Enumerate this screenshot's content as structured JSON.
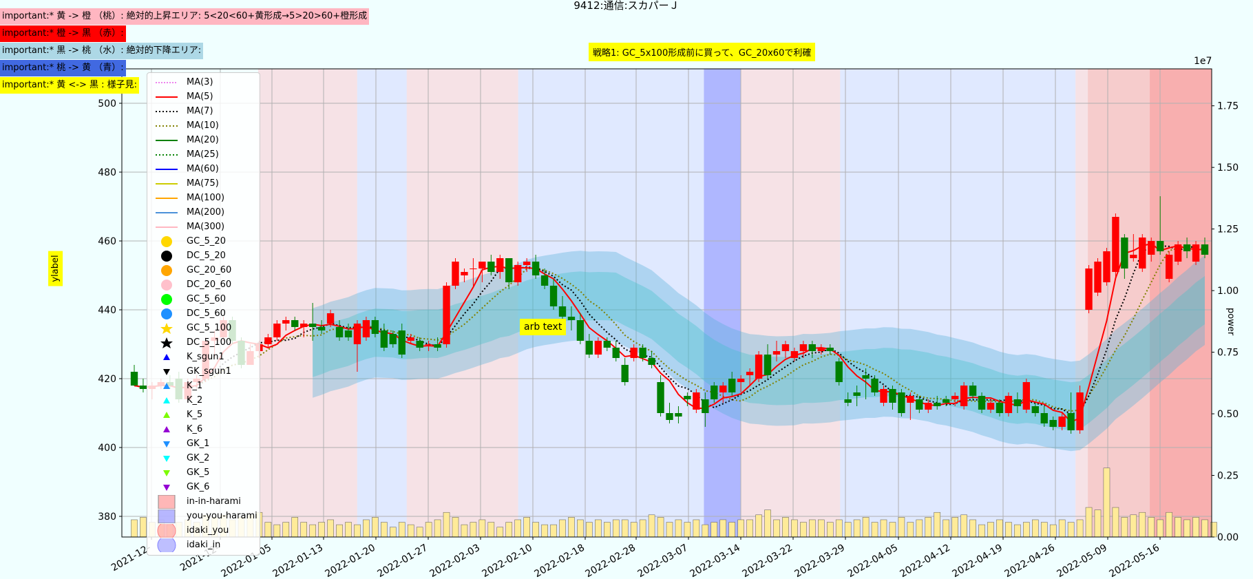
{
  "title": "9412:通信:スカパーＪ",
  "notes": [
    {
      "text": "important:* 黄 -> 橙 （桃）: 絶対的上昇エリア: 5<20<60+黄形成→5>20>60+橙形成",
      "bg": "#ffb6c1"
    },
    {
      "text": "important:* 橙 -> 黒 （赤）:",
      "bg": "#ff0000"
    },
    {
      "text": "important:* 黒 -> 桃 （水）: 絶対的下降エリア:",
      "bg": "#add8e6"
    },
    {
      "text": "important:* 桃 -> 黄 （青）:",
      "bg": "#4169e1"
    },
    {
      "text": "important:* 黄 <-> 黒 : 様子見:",
      "bg": "#ffff00"
    }
  ],
  "strategy_text": "戦略1: GC_5x100形成前に買って、GC_20x60で利確",
  "annotation_text": "arb text",
  "ylabel": "ylabel",
  "y2label": "power",
  "y2_scale_label": "1e7",
  "colors": {
    "up": "#ff0000",
    "down": "#008000",
    "volume": "#ffeb99"
  },
  "legend": [
    {
      "label": "MA(3)",
      "kind": "line",
      "color": "#ee82ee",
      "dash": "2,2"
    },
    {
      "label": "MA(5)",
      "kind": "line",
      "color": "#ff0000",
      "dash": ""
    },
    {
      "label": "MA(7)",
      "kind": "line",
      "color": "#000000",
      "dash": "2,3"
    },
    {
      "label": "MA(10)",
      "kind": "line",
      "color": "#808000",
      "dash": "2,3"
    },
    {
      "label": "MA(20)",
      "kind": "line",
      "color": "#008000",
      "dash": ""
    },
    {
      "label": "MA(25)",
      "kind": "line",
      "color": "#008000",
      "dash": "2,3"
    },
    {
      "label": "MA(60)",
      "kind": "line",
      "color": "#0000ff",
      "dash": ""
    },
    {
      "label": "MA(75)",
      "kind": "line",
      "color": "#cccc00",
      "dash": ""
    },
    {
      "label": "MA(100)",
      "kind": "line",
      "color": "#ffa500",
      "dash": ""
    },
    {
      "label": "MA(200)",
      "kind": "line",
      "color": "#4a90d9",
      "dash": ""
    },
    {
      "label": "MA(300)",
      "kind": "line",
      "color": "#ffb6c1",
      "dash": ""
    },
    {
      "label": "GC_5_20",
      "kind": "circle",
      "color": "#ffd700"
    },
    {
      "label": "DC_5_20",
      "kind": "circle",
      "color": "#000000"
    },
    {
      "label": "GC_20_60",
      "kind": "circle",
      "color": "#ffa500"
    },
    {
      "label": "DC_20_60",
      "kind": "circle",
      "color": "#ffc0cb"
    },
    {
      "label": "GC_5_60",
      "kind": "circle",
      "color": "#00ff00"
    },
    {
      "label": "DC_5_60",
      "kind": "circle",
      "color": "#1e90ff"
    },
    {
      "label": "GC_5_100",
      "kind": "star",
      "color": "#ffd700"
    },
    {
      "label": "DC_5_100",
      "kind": "star",
      "color": "#000000"
    },
    {
      "label": "K_sgun1",
      "kind": "tri-up",
      "color": "#0000ff"
    },
    {
      "label": "GK_sgun1",
      "kind": "tri-down",
      "color": "#000000"
    },
    {
      "label": "K_1",
      "kind": "tri-up",
      "color": "#1e90ff"
    },
    {
      "label": "K_2",
      "kind": "tri-up",
      "color": "#00ffff"
    },
    {
      "label": "K_5",
      "kind": "tri-up",
      "color": "#7cfc00"
    },
    {
      "label": "K_6",
      "kind": "tri-up",
      "color": "#9400d3"
    },
    {
      "label": "GK_1",
      "kind": "tri-down",
      "color": "#1e90ff"
    },
    {
      "label": "GK_2",
      "kind": "tri-down",
      "color": "#00ffff"
    },
    {
      "label": "GK_5",
      "kind": "tri-down",
      "color": "#7cfc00"
    },
    {
      "label": "GK_6",
      "kind": "tri-down",
      "color": "#9400d3"
    },
    {
      "label": "in-in-harami",
      "kind": "square",
      "color": "#ff9999"
    },
    {
      "label": "you-you-harami",
      "kind": "square",
      "color": "#9999ff"
    },
    {
      "label": "idaki_you",
      "kind": "bigcircle",
      "color": "#ff8080"
    },
    {
      "label": "idaki_in",
      "kind": "bigcircle",
      "color": "#8080ff"
    }
  ],
  "chart_data": {
    "type": "candlestick",
    "title": "9412:通信:スカパーＪ",
    "ylabel": "ylabel",
    "y2label": "power",
    "y2_multiplier": "1e7",
    "ylim": [
      374,
      510
    ],
    "y2lim": [
      0,
      1.9
    ],
    "yticks": [
      380,
      400,
      420,
      440,
      460,
      480,
      500
    ],
    "y2ticks": [
      "0.00",
      "0.25",
      "0.50",
      "0.75",
      "1.00",
      "1.25",
      "1.50",
      "1.75"
    ],
    "xticks": [
      "2021-12-",
      "2021-12-",
      "2022-01-05",
      "2022-01-13",
      "2022-01-20",
      "2022-01-27",
      "2022-02-03",
      "2022-02-10",
      "2022-02-18",
      "2022-02-28",
      "2022-03-07",
      "2022-03-14",
      "2022-03-22",
      "2022-03-29",
      "2022-04-05",
      "2022-04-12",
      "2022-04-19",
      "2022-04-26",
      "2022-05-09",
      "2022-05-16"
    ],
    "grid": true,
    "legend_position": "upper-left",
    "shaded_regions": [
      {
        "from": 22,
        "to": 38,
        "color": "#ffb6c1",
        "alpha": 0.4
      },
      {
        "from": 38,
        "to": 46,
        "color": "#c8c8ff",
        "alpha": 0.4
      },
      {
        "from": 46,
        "to": 64,
        "color": "#ffb6c1",
        "alpha": 0.4
      },
      {
        "from": 64,
        "to": 94,
        "color": "#c8c8ff",
        "alpha": 0.4
      },
      {
        "from": 94,
        "to": 100,
        "color": "#6060ff",
        "alpha": 0.45
      },
      {
        "from": 100,
        "to": 116,
        "color": "#ffb6c1",
        "alpha": 0.4
      },
      {
        "from": 116,
        "to": 154,
        "color": "#c8c8ff",
        "alpha": 0.4
      },
      {
        "from": 154,
        "to": 156,
        "color": "#ffb6c1",
        "alpha": 0.4
      },
      {
        "from": 156,
        "to": 166,
        "color": "#ff8080",
        "alpha": 0.4
      },
      {
        "from": 166,
        "to": 176,
        "color": "#ff6060",
        "alpha": 0.5
      }
    ],
    "candles": [
      {
        "o": 422,
        "h": 424,
        "l": 418,
        "c": 418
      },
      {
        "o": 418,
        "h": 420,
        "l": 416,
        "c": 417
      },
      {
        "o": 417,
        "h": 419,
        "l": 414,
        "c": 418
      },
      {
        "o": 418,
        "h": 420,
        "l": 417,
        "c": 419
      },
      {
        "o": 419,
        "h": 421,
        "l": 417,
        "c": 418
      },
      {
        "o": 420,
        "h": 422,
        "l": 413,
        "c": 414
      },
      {
        "o": 414,
        "h": 420,
        "l": 413,
        "c": 419
      },
      {
        "o": 419,
        "h": 421,
        "l": 417,
        "c": 420
      },
      {
        "o": 420,
        "h": 432,
        "l": 419,
        "c": 431
      },
      {
        "o": 431,
        "h": 434,
        "l": 426,
        "c": 432
      },
      {
        "o": 432,
        "h": 438,
        "l": 431,
        "c": 437
      },
      {
        "o": 437,
        "h": 438,
        "l": 430,
        "c": 431
      },
      {
        "o": 431,
        "h": 432,
        "l": 423,
        "c": 424
      },
      {
        "o": 424,
        "h": 430,
        "l": 424,
        "c": 428
      },
      {
        "o": 428,
        "h": 431,
        "l": 426,
        "c": 430
      },
      {
        "o": 430,
        "h": 433,
        "l": 429,
        "c": 432
      },
      {
        "o": 432,
        "h": 437,
        "l": 431,
        "c": 436
      },
      {
        "o": 436,
        "h": 438,
        "l": 434,
        "c": 437
      },
      {
        "o": 437,
        "h": 438,
        "l": 434,
        "c": 435
      },
      {
        "o": 435,
        "h": 437,
        "l": 432,
        "c": 436
      },
      {
        "o": 436,
        "h": 442,
        "l": 431,
        "c": 435
      },
      {
        "o": 435,
        "h": 437,
        "l": 433,
        "c": 434
      },
      {
        "o": 436,
        "h": 440,
        "l": 435,
        "c": 439
      },
      {
        "o": 435,
        "h": 437,
        "l": 431,
        "c": 432
      },
      {
        "o": 434,
        "h": 436,
        "l": 431,
        "c": 432
      },
      {
        "o": 430,
        "h": 437,
        "l": 422,
        "c": 436
      },
      {
        "o": 432,
        "h": 438,
        "l": 431,
        "c": 437
      },
      {
        "o": 437,
        "h": 438,
        "l": 432,
        "c": 433
      },
      {
        "o": 434,
        "h": 436,
        "l": 428,
        "c": 429
      },
      {
        "o": 433,
        "h": 434,
        "l": 429,
        "c": 430
      },
      {
        "o": 434,
        "h": 436,
        "l": 426,
        "c": 427
      },
      {
        "o": 431,
        "h": 433,
        "l": 430,
        "c": 432
      },
      {
        "o": 431,
        "h": 432,
        "l": 428,
        "c": 429
      },
      {
        "o": 430,
        "h": 431,
        "l": 428,
        "c": 430
      },
      {
        "o": 430,
        "h": 432,
        "l": 428,
        "c": 429
      },
      {
        "o": 430,
        "h": 448,
        "l": 429,
        "c": 447
      },
      {
        "o": 447,
        "h": 455,
        "l": 446,
        "c": 454
      },
      {
        "o": 450,
        "h": 452,
        "l": 448,
        "c": 451
      },
      {
        "o": 452,
        "h": 455,
        "l": 447,
        "c": 452
      },
      {
        "o": 452,
        "h": 454,
        "l": 448,
        "c": 454
      },
      {
        "o": 454,
        "h": 456,
        "l": 450,
        "c": 451
      },
      {
        "o": 451,
        "h": 456,
        "l": 449,
        "c": 455
      },
      {
        "o": 455,
        "h": 455,
        "l": 446,
        "c": 448
      },
      {
        "o": 448,
        "h": 454,
        "l": 447,
        "c": 453
      },
      {
        "o": 453,
        "h": 455,
        "l": 451,
        "c": 454
      },
      {
        "o": 454,
        "h": 456,
        "l": 449,
        "c": 450
      },
      {
        "o": 450,
        "h": 452,
        "l": 446,
        "c": 447
      },
      {
        "o": 447,
        "h": 449,
        "l": 440,
        "c": 441
      },
      {
        "o": 441,
        "h": 444,
        "l": 436,
        "c": 438
      },
      {
        "o": 438,
        "h": 441,
        "l": 434,
        "c": 437
      },
      {
        "o": 437,
        "h": 439,
        "l": 430,
        "c": 431
      },
      {
        "o": 431,
        "h": 433,
        "l": 426,
        "c": 427
      },
      {
        "o": 427,
        "h": 432,
        "l": 426,
        "c": 431
      },
      {
        "o": 431,
        "h": 432,
        "l": 428,
        "c": 429
      },
      {
        "o": 429,
        "h": 431,
        "l": 425,
        "c": 426
      },
      {
        "o": 424,
        "h": 426,
        "l": 418,
        "c": 419
      },
      {
        "o": 426,
        "h": 430,
        "l": 425,
        "c": 429
      },
      {
        "o": 429,
        "h": 430,
        "l": 425,
        "c": 426
      },
      {
        "o": 426,
        "h": 428,
        "l": 423,
        "c": 424
      },
      {
        "o": 419,
        "h": 421,
        "l": 409,
        "c": 410
      },
      {
        "o": 410,
        "h": 413,
        "l": 407,
        "c": 408
      },
      {
        "o": 410,
        "h": 412,
        "l": 407,
        "c": 409
      },
      {
        "o": 415,
        "h": 416,
        "l": 412,
        "c": 414
      },
      {
        "o": 411,
        "h": 417,
        "l": 410,
        "c": 416
      },
      {
        "o": 414,
        "h": 416,
        "l": 406,
        "c": 410
      },
      {
        "o": 418,
        "h": 419,
        "l": 413,
        "c": 414
      },
      {
        "o": 416,
        "h": 419,
        "l": 413,
        "c": 418
      },
      {
        "o": 420,
        "h": 422,
        "l": 415,
        "c": 416
      },
      {
        "o": 419,
        "h": 421,
        "l": 416,
        "c": 420
      },
      {
        "o": 421,
        "h": 423,
        "l": 418,
        "c": 422
      },
      {
        "o": 420,
        "h": 428,
        "l": 419,
        "c": 427
      },
      {
        "o": 427,
        "h": 430,
        "l": 420,
        "c": 421
      },
      {
        "o": 427,
        "h": 431,
        "l": 425,
        "c": 428
      },
      {
        "o": 428,
        "h": 431,
        "l": 426,
        "c": 430
      },
      {
        "o": 426,
        "h": 429,
        "l": 425,
        "c": 428
      },
      {
        "o": 428,
        "h": 431,
        "l": 426,
        "c": 430
      },
      {
        "o": 430,
        "h": 431,
        "l": 426,
        "c": 428
      },
      {
        "o": 428,
        "h": 430,
        "l": 427,
        "c": 429
      },
      {
        "o": 429,
        "h": 430,
        "l": 427,
        "c": 428
      },
      {
        "o": 425,
        "h": 426,
        "l": 418,
        "c": 419
      },
      {
        "o": 414,
        "h": 416,
        "l": 412,
        "c": 413
      },
      {
        "o": 416,
        "h": 418,
        "l": 412,
        "c": 415
      },
      {
        "o": 421,
        "h": 423,
        "l": 414,
        "c": 420
      },
      {
        "o": 420,
        "h": 421,
        "l": 415,
        "c": 416
      },
      {
        "o": 413,
        "h": 418,
        "l": 412,
        "c": 417
      },
      {
        "o": 417,
        "h": 418,
        "l": 411,
        "c": 413
      },
      {
        "o": 416,
        "h": 417,
        "l": 409,
        "c": 410
      },
      {
        "o": 413,
        "h": 416,
        "l": 408,
        "c": 415
      },
      {
        "o": 414,
        "h": 415,
        "l": 410,
        "c": 411
      },
      {
        "o": 411,
        "h": 414,
        "l": 410,
        "c": 413
      },
      {
        "o": 413,
        "h": 415,
        "l": 411,
        "c": 412
      },
      {
        "o": 414,
        "h": 415,
        "l": 412,
        "c": 413
      },
      {
        "o": 414,
        "h": 416,
        "l": 412,
        "c": 415
      },
      {
        "o": 412,
        "h": 419,
        "l": 411,
        "c": 418
      },
      {
        "o": 418,
        "h": 419,
        "l": 414,
        "c": 415
      },
      {
        "o": 415,
        "h": 416,
        "l": 410,
        "c": 411
      },
      {
        "o": 411,
        "h": 414,
        "l": 410,
        "c": 413
      },
      {
        "o": 413,
        "h": 414,
        "l": 409,
        "c": 410
      },
      {
        "o": 410,
        "h": 416,
        "l": 409,
        "c": 415
      },
      {
        "o": 414,
        "h": 416,
        "l": 410,
        "c": 412
      },
      {
        "o": 411,
        "h": 420,
        "l": 410,
        "c": 419
      },
      {
        "o": 412,
        "h": 413,
        "l": 409,
        "c": 410
      },
      {
        "o": 410,
        "h": 412,
        "l": 406,
        "c": 407
      },
      {
        "o": 408,
        "h": 409,
        "l": 405,
        "c": 406
      },
      {
        "o": 406,
        "h": 410,
        "l": 405,
        "c": 409
      },
      {
        "o": 410,
        "h": 416,
        "l": 404,
        "c": 405
      },
      {
        "o": 405,
        "h": 418,
        "l": 404,
        "c": 416
      },
      {
        "o": 440,
        "h": 453,
        "l": 439,
        "c": 452
      },
      {
        "o": 445,
        "h": 455,
        "l": 444,
        "c": 454
      },
      {
        "o": 448,
        "h": 458,
        "l": 447,
        "c": 457
      },
      {
        "o": 451,
        "h": 468,
        "l": 449,
        "c": 467
      },
      {
        "o": 461,
        "h": 462,
        "l": 449,
        "c": 452
      },
      {
        "o": 455,
        "h": 462,
        "l": 454,
        "c": 456
      },
      {
        "o": 452,
        "h": 462,
        "l": 451,
        "c": 461
      },
      {
        "o": 456,
        "h": 461,
        "l": 454,
        "c": 460
      },
      {
        "o": 460,
        "h": 473,
        "l": 456,
        "c": 457
      },
      {
        "o": 449,
        "h": 457,
        "l": 448,
        "c": 456
      },
      {
        "o": 454,
        "h": 460,
        "l": 453,
        "c": 459
      },
      {
        "o": 459,
        "h": 461,
        "l": 455,
        "c": 457
      },
      {
        "o": 454,
        "h": 460,
        "l": 453,
        "c": 459
      },
      {
        "o": 459,
        "h": 461,
        "l": 455,
        "c": 456
      }
    ],
    "volumes_1e7": [
      0.07,
      0.08,
      0.06,
      0.07,
      0.05,
      0.06,
      0.07,
      0.06,
      0.09,
      0.08,
      0.09,
      0.07,
      0.08,
      0.09,
      0.1,
      0.06,
      0.05,
      0.06,
      0.08,
      0.06,
      0.05,
      0.06,
      0.07,
      0.05,
      0.06,
      0.05,
      0.07,
      0.08,
      0.06,
      0.04,
      0.06,
      0.05,
      0.04,
      0.06,
      0.07,
      0.1,
      0.08,
      0.05,
      0.06,
      0.07,
      0.06,
      0.04,
      0.06,
      0.07,
      0.08,
      0.06,
      0.05,
      0.05,
      0.07,
      0.08,
      0.07,
      0.06,
      0.07,
      0.06,
      0.07,
      0.07,
      0.06,
      0.07,
      0.09,
      0.08,
      0.06,
      0.07,
      0.06,
      0.07,
      0.05,
      0.06,
      0.07,
      0.06,
      0.07,
      0.07,
      0.09,
      0.11,
      0.07,
      0.08,
      0.07,
      0.06,
      0.07,
      0.07,
      0.06,
      0.07,
      0.06,
      0.07,
      0.08,
      0.06,
      0.07,
      0.06,
      0.08,
      0.06,
      0.07,
      0.08,
      0.1,
      0.07,
      0.08,
      0.09,
      0.07,
      0.05,
      0.06,
      0.07,
      0.06,
      0.05,
      0.06,
      0.07,
      0.06,
      0.05,
      0.07,
      0.06,
      0.07,
      0.12,
      0.11,
      0.28,
      0.12,
      0.08,
      0.09,
      0.1,
      0.08,
      0.07,
      0.1,
      0.08,
      0.07,
      0.08,
      0.07,
      0.06
    ]
  }
}
